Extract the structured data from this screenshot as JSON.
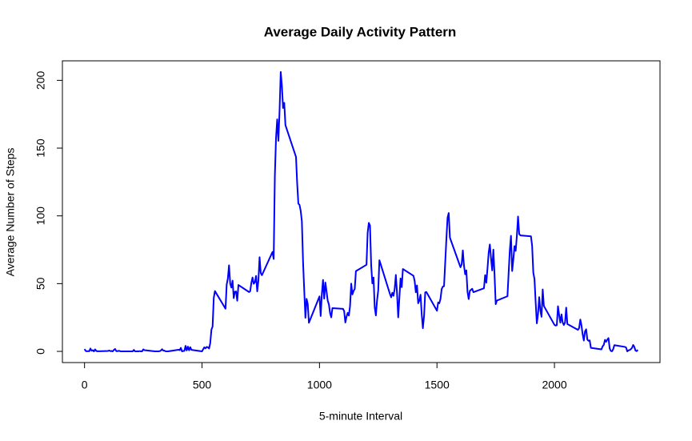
{
  "chart_data": {
    "type": "line",
    "title": "Average Daily Activity Pattern",
    "x_label": "5-minute Interval",
    "y_label": "Average Number of Steps",
    "xlim": [
      -94.2,
      2449.2
    ],
    "ylim": [
      -8.25,
      214.4
    ],
    "xticks": [
      0,
      500,
      1000,
      1500,
      2000
    ],
    "yticks": [
      0,
      50,
      100,
      150,
      200
    ],
    "grid": false,
    "x": [
      0,
      5,
      10,
      15,
      20,
      25,
      30,
      35,
      40,
      45,
      50,
      55,
      100,
      105,
      110,
      115,
      120,
      125,
      130,
      135,
      140,
      145,
      150,
      155,
      200,
      205,
      210,
      215,
      220,
      225,
      230,
      235,
      240,
      245,
      250,
      255,
      300,
      305,
      310,
      315,
      320,
      325,
      330,
      335,
      340,
      345,
      350,
      355,
      400,
      405,
      410,
      415,
      420,
      425,
      430,
      435,
      440,
      445,
      450,
      455,
      500,
      505,
      510,
      515,
      520,
      525,
      530,
      535,
      540,
      545,
      550,
      555,
      600,
      605,
      610,
      615,
      620,
      625,
      630,
      635,
      640,
      645,
      650,
      655,
      700,
      705,
      710,
      715,
      720,
      725,
      730,
      735,
      740,
      745,
      750,
      755,
      800,
      805,
      810,
      815,
      820,
      825,
      830,
      835,
      840,
      845,
      850,
      855,
      900,
      905,
      910,
      915,
      920,
      925,
      930,
      935,
      940,
      945,
      950,
      955,
      1000,
      1005,
      1010,
      1015,
      1020,
      1025,
      1030,
      1035,
      1040,
      1045,
      1050,
      1055,
      1100,
      1105,
      1110,
      1115,
      1120,
      1125,
      1130,
      1135,
      1140,
      1145,
      1150,
      1155,
      1200,
      1205,
      1210,
      1215,
      1220,
      1225,
      1230,
      1235,
      1240,
      1245,
      1250,
      1255,
      1300,
      1305,
      1310,
      1315,
      1320,
      1325,
      1330,
      1335,
      1340,
      1345,
      1350,
      1355,
      1400,
      1405,
      1410,
      1415,
      1420,
      1425,
      1430,
      1435,
      1440,
      1445,
      1450,
      1455,
      1500,
      1505,
      1510,
      1515,
      1520,
      1525,
      1530,
      1535,
      1540,
      1545,
      1550,
      1555,
      1600,
      1605,
      1610,
      1615,
      1620,
      1625,
      1630,
      1635,
      1640,
      1645,
      1650,
      1655,
      1700,
      1705,
      1710,
      1715,
      1720,
      1725,
      1730,
      1735,
      1740,
      1745,
      1750,
      1755,
      1800,
      1805,
      1810,
      1815,
      1820,
      1825,
      1830,
      1835,
      1840,
      1845,
      1850,
      1855,
      1900,
      1905,
      1910,
      1915,
      1920,
      1925,
      1930,
      1935,
      1940,
      1945,
      1950,
      1955,
      2000,
      2005,
      2010,
      2015,
      2020,
      2025,
      2030,
      2035,
      2040,
      2045,
      2050,
      2055,
      2100,
      2105,
      2110,
      2115,
      2120,
      2125,
      2130,
      2135,
      2140,
      2145,
      2150,
      2155,
      2200,
      2205,
      2210,
      2215,
      2220,
      2225,
      2230,
      2235,
      2240,
      2245,
      2250,
      2255,
      2300,
      2305,
      2310,
      2315,
      2320,
      2325,
      2330,
      2335,
      2340,
      2345,
      2350,
      2355
    ],
    "series": [
      {
        "name": "Average Number of Steps",
        "color": "#0000ff",
        "values": [
          1.7,
          0.3,
          0.1,
          0.2,
          0.1,
          2.1,
          0.5,
          0.9,
          0,
          1.5,
          0.3,
          0.1,
          0.3,
          0.7,
          0.2,
          0.3,
          0,
          1.1,
          1.8,
          0.2,
          0.2,
          0.4,
          0.3,
          0,
          0,
          0,
          1.1,
          0,
          0,
          0.1,
          0,
          0.2,
          0,
          0,
          1.5,
          0.9,
          0,
          0,
          0,
          0,
          0.2,
          0.6,
          1.6,
          0.6,
          0.5,
          0.1,
          0,
          0,
          1.2,
          0.9,
          2.6,
          0,
          0.3,
          0.4,
          4.1,
          0.7,
          3.5,
          0.8,
          3.1,
          1.1,
          0,
          1.6,
          3,
          2.2,
          3.3,
          3,
          2.1,
          6.1,
          16,
          18.3,
          39.5,
          44.5,
          31.5,
          49.3,
          53.8,
          63.5,
          50,
          47.1,
          52.2,
          39.3,
          44,
          44.2,
          37.4,
          49,
          43.8,
          44.4,
          50.5,
          54.5,
          49.9,
          51,
          55.7,
          44.3,
          52.3,
          69.5,
          57.8,
          56.2,
          73.4,
          68.2,
          129.4,
          157.5,
          171.2,
          155.4,
          177.3,
          206.2,
          195.9,
          179.6,
          183.4,
          167,
          143.5,
          124,
          109.1,
          108.1,
          103.7,
          95.97,
          66.2,
          45.2,
          24.8,
          38.8,
          35,
          21.1,
          40.6,
          26.1,
          42.4,
          52.7,
          38.9,
          50.8,
          44.3,
          37.4,
          34.7,
          28.3,
          25.1,
          31.9,
          31.4,
          29.7,
          21.3,
          25.5,
          28.4,
          26.5,
          33.4,
          50,
          42,
          44.6,
          46,
          59.2,
          63.9,
          87.7,
          94.8,
          92.8,
          63.4,
          50.2,
          54.5,
          32.4,
          26.5,
          37.7,
          45.1,
          67.3,
          42.3,
          39.9,
          43.3,
          41,
          46.2,
          56.4,
          42.8,
          25.1,
          39.5,
          53.8,
          47.4,
          60.8,
          55.8,
          51.9,
          43.6,
          48.7,
          35.5,
          37.5,
          41.8,
          27.5,
          17.1,
          26.1,
          43.6,
          43.8,
          30,
          36.1,
          35.5,
          38.8,
          45.96,
          47.8,
          48.1,
          65.3,
          82.9,
          98.7,
          102.1,
          83.96,
          62.1,
          64.1,
          74.5,
          63.2,
          56.9,
          59.8,
          43.9,
          38.6,
          44.7,
          45.5,
          46.2,
          43.7,
          46.6,
          56.3,
          50.7,
          61.2,
          72.7,
          78.9,
          68.9,
          59.7,
          75.1,
          56.5,
          34.8,
          37.5,
          40.7,
          58,
          74.7,
          85.3,
          59.3,
          67.8,
          77.7,
          74.2,
          85.3,
          99.5,
          86.6,
          85.6,
          84.9,
          77.8,
          58,
          53.4,
          36.3,
          20.7,
          27.4,
          40,
          30.2,
          25.5,
          45.7,
          33.5,
          19.6,
          19,
          19.3,
          33.3,
          26.8,
          21.2,
          27.3,
          21.3,
          19.5,
          21.3,
          32.3,
          20.2,
          15.9,
          17.2,
          23.5,
          19.2,
          12.5,
          8,
          14.7,
          16.3,
          8.7,
          7.8,
          8.1,
          2.6,
          1.5,
          3.7,
          4.8,
          8.5,
          7.1,
          8.7,
          9.8,
          2.2,
          0.3,
          0.1,
          1.6,
          4.6,
          3.3,
          2.8,
          0,
          0.8,
          1,
          1.6,
          2.6,
          4.7,
          3.3,
          0.6,
          0.2,
          1.1
        ]
      }
    ]
  }
}
